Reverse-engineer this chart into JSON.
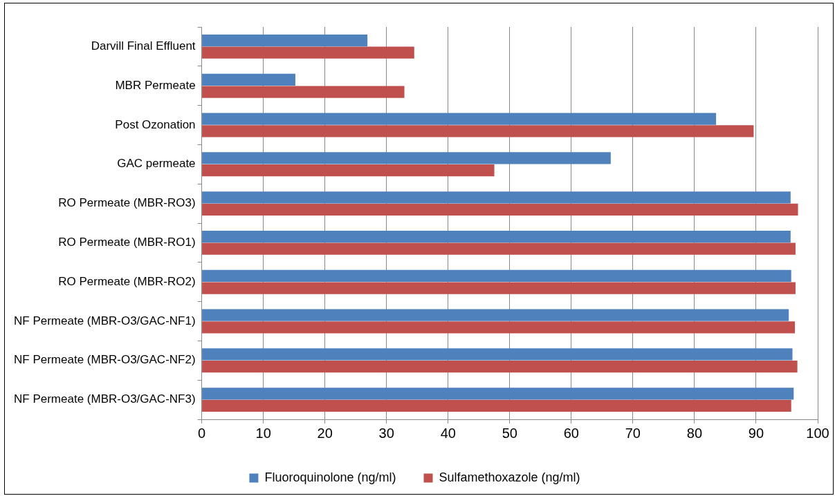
{
  "chart_data": {
    "type": "bar",
    "orientation": "horizontal",
    "categories": [
      "Darvill Final Effluent",
      "MBR Permeate",
      "Post Ozonation",
      "GAC permeate",
      "RO Permeate (MBR-RO3)",
      "RO Permeate (MBR-RO1)",
      "RO Permeate (MBR-RO2)",
      "NF Permeate (MBR-O3/GAC-NF1)",
      "NF Permeate (MBR-O3/GAC-NF2)",
      "NF Permeate (MBR-O3/GAC-NF3)"
    ],
    "series": [
      {
        "name": "Fluoroquinolone (ng/ml)",
        "color": "#4f81bd",
        "values": [
          26.9,
          15.2,
          83.5,
          66.4,
          95.6,
          95.6,
          95.7,
          95.3,
          95.9,
          96.1
        ]
      },
      {
        "name": "Sulfamethoxazole (ng/ml)",
        "color": "#c0504d",
        "values": [
          34.5,
          32.9,
          89.6,
          47.5,
          96.8,
          96.4,
          96.4,
          96.3,
          96.7,
          95.7
        ]
      }
    ],
    "xlim": [
      0,
      100
    ],
    "xticks": [
      0,
      10,
      20,
      30,
      40,
      50,
      60,
      70,
      80,
      90,
      100
    ],
    "grid": "x",
    "legend": "bottom"
  }
}
